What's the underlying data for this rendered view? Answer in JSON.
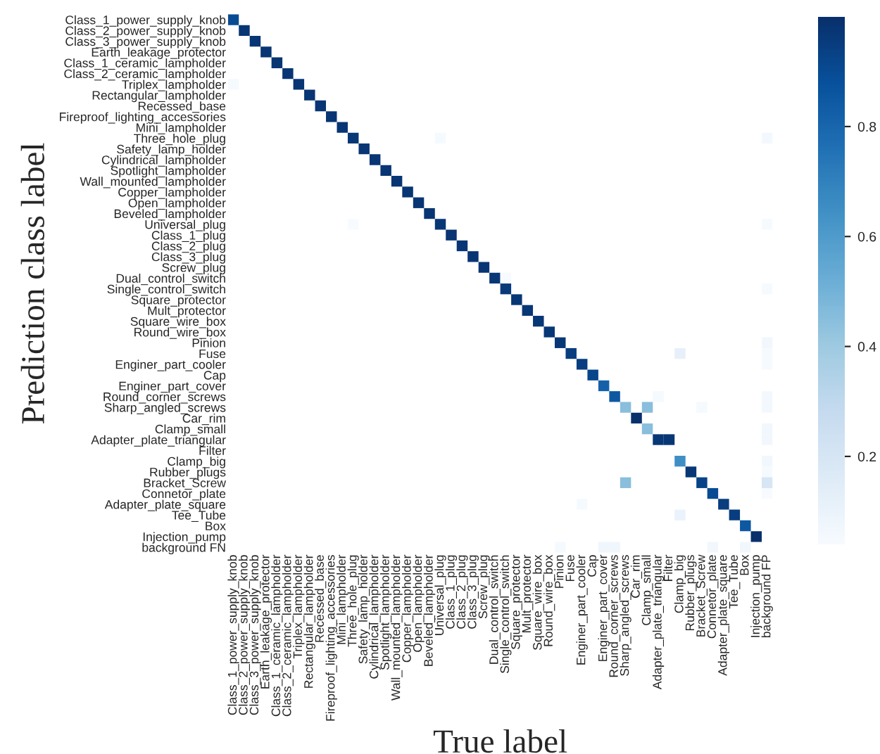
{
  "chart_data": {
    "type": "heatmap",
    "xlabel": "True label",
    "ylabel": "Prediction class label",
    "categories": [
      "Class_1_power_supply_knob",
      "Class_2_power_supply_knob",
      "Class_3_power_supply_knob",
      "Earth_leakage_protector",
      "Class_1_ceramic_lampholder",
      "Class_2_ceramic_lampholder",
      "Triplex_lampholder",
      "Rectangular_lampholder",
      "Recessed_base",
      "Fireproof_lighting_accessories",
      "Mini_lampholder",
      "Three_hole_plug",
      "Safety_lamp_holder",
      "Cylindrical_lampholder",
      "Spotlight_lampholder",
      "Wall_mounted_lampholder",
      "Copper_lampholder",
      "Open_lampholder",
      "Beveled_lampholder",
      "Universal_plug",
      "Class_1_plug",
      "Class_2_plug",
      "Class_3_plug",
      "Screw_plug",
      "Dual_control_switch",
      "Single_control_switch",
      "Square_protector",
      "Mult_protector",
      "Square_wire_box",
      "Round_wire_box",
      "Pinion",
      "Fuse",
      "Enginer_part_cooler",
      "Cap",
      "Enginer_part_cover",
      "Round_corner_screws",
      "Sharp_angled_screws",
      "Car_rim",
      "Clamp_small",
      "Adapter_plate_triangular",
      "Filter",
      "Clamp_big",
      "Rubber_plugs",
      "Bracket_Screw",
      "Connetor_plate",
      "Adapter_plate_square",
      "Tee_Tube",
      "Box",
      "Injection_pump",
      "background FP"
    ],
    "y_categories": [
      "Class_1_power_supply_knob",
      "Class_2_power_supply_knob",
      "Class_3_power_supply_knob",
      "Earth_leakage_protector",
      "Class_1_ceramic_lampholder",
      "Class_2_ceramic_lampholder",
      "Triplex_lampholder",
      "Rectangular_lampholder",
      "Recessed_base",
      "Fireproof_lighting_accessories",
      "Mini_lampholder",
      "Three_hole_plug",
      "Safety_lamp_holder",
      "Cylindrical_lampholder",
      "Spotlight_lampholder",
      "Wall_mounted_lampholder",
      "Copper_lampholder",
      "Open_lampholder",
      "Beveled_lampholder",
      "Universal_plug",
      "Class_1_plug",
      "Class_2_plug",
      "Class_3_plug",
      "Screw_plug",
      "Dual_control_switch",
      "Single_control_switch",
      "Square_protector",
      "Mult_protector",
      "Square_wire_box",
      "Round_wire_box",
      "Pinion",
      "Fuse",
      "Enginer_part_cooler",
      "Cap",
      "Enginer_part_cover",
      "Round_corner_screws",
      "Sharp_angled_screws",
      "Car_rim",
      "Clamp_small",
      "Adapter_plate_triangular",
      "Filter",
      "Clamp_big",
      "Rubber_plugs",
      "Bracket_Screw",
      "Connetor_plate",
      "Adapter_plate_square",
      "Tee_Tube",
      "Box",
      "Injection_pump",
      "background FN"
    ],
    "cells": [
      [
        0.9,
        null,
        null,
        null,
        null,
        null,
        null,
        null,
        null,
        null,
        null,
        null,
        null,
        null,
        null,
        null,
        null,
        null,
        null,
        null,
        null,
        null,
        null,
        null,
        null,
        null,
        null,
        null,
        null,
        null,
        null,
        null,
        null,
        null,
        null,
        null,
        null,
        null,
        null,
        null,
        null,
        null,
        null,
        null,
        null,
        null,
        null,
        null,
        null,
        null
      ],
      [
        null,
        0.98,
        null,
        null,
        null,
        null,
        null,
        null,
        null,
        null,
        null,
        null,
        null,
        null,
        null,
        null,
        null,
        null,
        null,
        null,
        null,
        null,
        null,
        null,
        null,
        null,
        null,
        null,
        null,
        null,
        null,
        null,
        null,
        null,
        null,
        null,
        null,
        null,
        null,
        null,
        null,
        null,
        null,
        null,
        null,
        null,
        null,
        null,
        null,
        null
      ],
      [
        null,
        null,
        0.98,
        null,
        null,
        null,
        null,
        null,
        null,
        null,
        null,
        null,
        null,
        null,
        null,
        null,
        null,
        null,
        null,
        null,
        null,
        null,
        null,
        null,
        null,
        null,
        null,
        null,
        null,
        null,
        null,
        null,
        null,
        null,
        null,
        null,
        null,
        null,
        null,
        null,
        null,
        null,
        null,
        null,
        null,
        null,
        null,
        null,
        null,
        null
      ],
      [
        null,
        null,
        null,
        0.98,
        null,
        null,
        null,
        null,
        null,
        null,
        null,
        null,
        null,
        null,
        null,
        null,
        null,
        null,
        null,
        null,
        null,
        null,
        null,
        null,
        null,
        null,
        null,
        null,
        null,
        null,
        null,
        null,
        null,
        null,
        null,
        null,
        null,
        null,
        null,
        null,
        null,
        null,
        null,
        null,
        null,
        null,
        null,
        null,
        null,
        null
      ],
      [
        null,
        null,
        null,
        null,
        0.98,
        null,
        null,
        null,
        null,
        null,
        null,
        null,
        null,
        null,
        null,
        null,
        null,
        null,
        null,
        null,
        null,
        null,
        null,
        null,
        null,
        null,
        null,
        null,
        null,
        null,
        null,
        null,
        null,
        null,
        null,
        null,
        null,
        null,
        null,
        null,
        null,
        null,
        null,
        null,
        null,
        null,
        null,
        null,
        null,
        null
      ],
      [
        null,
        null,
        null,
        null,
        null,
        0.98,
        null,
        null,
        null,
        null,
        null,
        null,
        null,
        null,
        null,
        null,
        null,
        null,
        null,
        null,
        null,
        null,
        null,
        null,
        null,
        null,
        null,
        null,
        null,
        null,
        null,
        null,
        null,
        null,
        null,
        null,
        null,
        null,
        null,
        null,
        null,
        null,
        null,
        null,
        null,
        null,
        null,
        null,
        null,
        null
      ],
      [
        0.05,
        null,
        null,
        null,
        null,
        null,
        0.98,
        null,
        null,
        null,
        null,
        null,
        null,
        null,
        null,
        null,
        null,
        null,
        null,
        null,
        null,
        null,
        null,
        null,
        null,
        null,
        null,
        null,
        null,
        null,
        null,
        null,
        null,
        null,
        null,
        null,
        null,
        null,
        null,
        null,
        null,
        null,
        null,
        null,
        null,
        null,
        null,
        null,
        null,
        null
      ],
      [
        null,
        null,
        null,
        null,
        null,
        null,
        null,
        0.98,
        null,
        null,
        null,
        null,
        null,
        null,
        null,
        null,
        null,
        null,
        null,
        null,
        null,
        null,
        null,
        null,
        null,
        null,
        null,
        null,
        null,
        null,
        null,
        null,
        null,
        null,
        null,
        null,
        null,
        null,
        null,
        null,
        null,
        null,
        null,
        null,
        null,
        null,
        null,
        null,
        null,
        null
      ],
      [
        null,
        null,
        null,
        null,
        null,
        null,
        null,
        null,
        0.98,
        null,
        null,
        null,
        null,
        null,
        null,
        null,
        null,
        null,
        null,
        null,
        null,
        null,
        null,
        null,
        null,
        null,
        null,
        null,
        null,
        null,
        null,
        null,
        null,
        null,
        null,
        null,
        null,
        null,
        null,
        null,
        null,
        null,
        null,
        null,
        null,
        null,
        null,
        null,
        null,
        null
      ],
      [
        null,
        null,
        null,
        null,
        null,
        null,
        null,
        null,
        null,
        0.98,
        null,
        null,
        null,
        null,
        null,
        null,
        null,
        null,
        null,
        null,
        null,
        null,
        null,
        null,
        null,
        null,
        null,
        null,
        null,
        null,
        null,
        null,
        null,
        null,
        null,
        null,
        null,
        null,
        null,
        null,
        null,
        null,
        null,
        null,
        null,
        null,
        null,
        null,
        null,
        null
      ],
      [
        null,
        null,
        null,
        null,
        null,
        null,
        null,
        null,
        null,
        null,
        0.98,
        null,
        null,
        null,
        null,
        null,
        null,
        null,
        null,
        null,
        null,
        null,
        null,
        null,
        null,
        null,
        null,
        null,
        null,
        null,
        null,
        null,
        null,
        null,
        null,
        null,
        null,
        null,
        null,
        null,
        null,
        null,
        null,
        null,
        null,
        null,
        null,
        null,
        null,
        null
      ],
      [
        null,
        null,
        null,
        null,
        null,
        null,
        null,
        null,
        null,
        null,
        null,
        0.97,
        null,
        null,
        null,
        null,
        null,
        null,
        null,
        0.05,
        null,
        null,
        null,
        null,
        null,
        null,
        null,
        null,
        null,
        null,
        null,
        null,
        null,
        null,
        null,
        null,
        null,
        null,
        null,
        null,
        null,
        null,
        null,
        null,
        null,
        null,
        null,
        null,
        null,
        0.06
      ],
      [
        null,
        null,
        null,
        null,
        null,
        null,
        null,
        null,
        null,
        null,
        null,
        null,
        0.98,
        null,
        null,
        null,
        null,
        null,
        null,
        null,
        null,
        null,
        null,
        null,
        null,
        null,
        null,
        null,
        null,
        null,
        null,
        null,
        null,
        null,
        null,
        null,
        null,
        null,
        null,
        null,
        null,
        null,
        null,
        null,
        null,
        null,
        null,
        null,
        null,
        null
      ],
      [
        null,
        null,
        null,
        null,
        null,
        null,
        null,
        null,
        null,
        null,
        null,
        null,
        null,
        0.98,
        null,
        null,
        null,
        null,
        null,
        null,
        null,
        null,
        null,
        null,
        null,
        null,
        null,
        null,
        null,
        null,
        null,
        null,
        null,
        null,
        null,
        null,
        null,
        null,
        null,
        null,
        null,
        null,
        null,
        null,
        null,
        null,
        null,
        null,
        null,
        null
      ],
      [
        null,
        null,
        null,
        null,
        null,
        null,
        null,
        null,
        null,
        null,
        null,
        null,
        null,
        null,
        0.98,
        null,
        null,
        null,
        null,
        null,
        null,
        null,
        null,
        null,
        null,
        null,
        null,
        null,
        null,
        null,
        null,
        null,
        null,
        null,
        null,
        null,
        null,
        null,
        null,
        null,
        null,
        null,
        null,
        null,
        null,
        null,
        null,
        null,
        null,
        null
      ],
      [
        null,
        null,
        null,
        null,
        null,
        null,
        null,
        null,
        null,
        null,
        null,
        null,
        null,
        null,
        null,
        0.98,
        null,
        null,
        null,
        null,
        null,
        null,
        null,
        null,
        null,
        null,
        null,
        null,
        null,
        null,
        null,
        null,
        null,
        null,
        null,
        null,
        null,
        null,
        null,
        null,
        null,
        null,
        null,
        null,
        null,
        null,
        null,
        null,
        null,
        null
      ],
      [
        null,
        null,
        null,
        null,
        null,
        null,
        null,
        null,
        null,
        null,
        null,
        null,
        null,
        null,
        null,
        null,
        0.98,
        null,
        null,
        null,
        null,
        null,
        null,
        null,
        null,
        null,
        null,
        null,
        null,
        null,
        null,
        null,
        null,
        null,
        null,
        null,
        null,
        null,
        null,
        null,
        null,
        null,
        null,
        null,
        null,
        null,
        null,
        null,
        null,
        null
      ],
      [
        null,
        null,
        null,
        null,
        null,
        null,
        null,
        null,
        null,
        null,
        null,
        null,
        null,
        null,
        null,
        null,
        null,
        0.98,
        null,
        null,
        null,
        null,
        null,
        null,
        null,
        null,
        null,
        null,
        null,
        null,
        null,
        null,
        null,
        null,
        null,
        null,
        null,
        null,
        null,
        null,
        null,
        null,
        null,
        null,
        null,
        null,
        null,
        null,
        null,
        null
      ],
      [
        null,
        null,
        null,
        null,
        null,
        null,
        null,
        null,
        null,
        null,
        null,
        null,
        null,
        null,
        null,
        null,
        null,
        null,
        0.98,
        null,
        null,
        null,
        null,
        null,
        null,
        null,
        null,
        null,
        null,
        null,
        null,
        null,
        null,
        null,
        null,
        null,
        null,
        null,
        null,
        null,
        null,
        null,
        null,
        null,
        null,
        null,
        null,
        null,
        null,
        null
      ],
      [
        null,
        null,
        null,
        null,
        null,
        null,
        null,
        null,
        null,
        null,
        null,
        0.04,
        null,
        null,
        null,
        null,
        null,
        null,
        null,
        0.97,
        null,
        null,
        null,
        null,
        null,
        null,
        null,
        null,
        null,
        null,
        null,
        null,
        null,
        null,
        null,
        null,
        null,
        null,
        null,
        null,
        null,
        null,
        null,
        null,
        null,
        null,
        null,
        null,
        null,
        0.05
      ],
      [
        null,
        null,
        null,
        null,
        null,
        null,
        null,
        null,
        null,
        null,
        null,
        null,
        null,
        null,
        null,
        null,
        null,
        null,
        null,
        null,
        0.98,
        null,
        null,
        null,
        null,
        null,
        null,
        null,
        null,
        null,
        null,
        null,
        null,
        null,
        null,
        null,
        null,
        null,
        null,
        null,
        null,
        null,
        null,
        null,
        null,
        null,
        null,
        null,
        null,
        null
      ],
      [
        null,
        null,
        null,
        null,
        null,
        null,
        null,
        null,
        null,
        null,
        null,
        null,
        null,
        null,
        null,
        null,
        null,
        null,
        null,
        null,
        null,
        0.98,
        null,
        null,
        null,
        null,
        null,
        null,
        null,
        null,
        null,
        null,
        null,
        null,
        null,
        null,
        null,
        null,
        null,
        null,
        null,
        null,
        null,
        null,
        null,
        null,
        null,
        null,
        null,
        null
      ],
      [
        null,
        null,
        null,
        null,
        null,
        null,
        null,
        null,
        null,
        null,
        null,
        null,
        null,
        null,
        null,
        null,
        null,
        null,
        null,
        null,
        null,
        null,
        0.98,
        null,
        null,
        null,
        null,
        null,
        null,
        null,
        null,
        null,
        null,
        null,
        null,
        null,
        null,
        null,
        null,
        null,
        null,
        null,
        null,
        null,
        null,
        null,
        null,
        null,
        null,
        null
      ],
      [
        null,
        null,
        null,
        null,
        null,
        null,
        null,
        null,
        null,
        null,
        null,
        null,
        null,
        null,
        null,
        null,
        null,
        null,
        null,
        null,
        null,
        null,
        null,
        0.98,
        null,
        null,
        null,
        null,
        null,
        null,
        null,
        null,
        null,
        null,
        null,
        null,
        null,
        null,
        null,
        null,
        null,
        null,
        null,
        null,
        null,
        null,
        null,
        null,
        null,
        null
      ],
      [
        null,
        null,
        null,
        null,
        null,
        null,
        null,
        null,
        null,
        null,
        null,
        null,
        null,
        null,
        null,
        null,
        null,
        null,
        null,
        null,
        null,
        null,
        null,
        null,
        0.97,
        0.04,
        null,
        null,
        null,
        null,
        null,
        null,
        null,
        null,
        null,
        null,
        null,
        null,
        null,
        null,
        null,
        null,
        null,
        null,
        null,
        null,
        null,
        null,
        null,
        null
      ],
      [
        null,
        null,
        null,
        null,
        null,
        null,
        null,
        null,
        null,
        null,
        null,
        null,
        null,
        null,
        null,
        null,
        null,
        null,
        null,
        null,
        null,
        null,
        null,
        null,
        null,
        0.96,
        null,
        null,
        null,
        null,
        null,
        null,
        null,
        null,
        null,
        null,
        null,
        null,
        null,
        null,
        null,
        null,
        null,
        null,
        null,
        null,
        null,
        null,
        null,
        0.05
      ],
      [
        null,
        null,
        null,
        null,
        null,
        null,
        null,
        null,
        null,
        null,
        null,
        null,
        null,
        null,
        null,
        null,
        null,
        null,
        null,
        null,
        null,
        null,
        null,
        null,
        null,
        null,
        0.97,
        null,
        null,
        null,
        null,
        null,
        null,
        null,
        null,
        null,
        null,
        null,
        null,
        null,
        null,
        null,
        null,
        null,
        null,
        null,
        null,
        null,
        null,
        null
      ],
      [
        null,
        null,
        null,
        null,
        null,
        null,
        null,
        null,
        null,
        null,
        null,
        null,
        null,
        null,
        null,
        null,
        null,
        null,
        null,
        null,
        null,
        null,
        null,
        null,
        null,
        null,
        null,
        0.97,
        null,
        null,
        null,
        null,
        null,
        null,
        null,
        null,
        null,
        null,
        null,
        null,
        null,
        null,
        null,
        null,
        null,
        null,
        null,
        null,
        null,
        null
      ],
      [
        null,
        null,
        null,
        null,
        null,
        null,
        null,
        null,
        null,
        null,
        null,
        null,
        null,
        null,
        null,
        null,
        null,
        null,
        null,
        null,
        null,
        null,
        null,
        null,
        null,
        null,
        null,
        null,
        0.97,
        null,
        null,
        null,
        null,
        null,
        null,
        null,
        null,
        null,
        null,
        null,
        null,
        null,
        null,
        null,
        null,
        null,
        null,
        null,
        null,
        null
      ],
      [
        null,
        null,
        null,
        null,
        null,
        null,
        null,
        null,
        null,
        null,
        null,
        null,
        null,
        null,
        null,
        null,
        null,
        null,
        null,
        null,
        null,
        null,
        null,
        null,
        null,
        null,
        null,
        null,
        null,
        0.97,
        null,
        null,
        null,
        null,
        null,
        null,
        null,
        null,
        null,
        null,
        null,
        null,
        null,
        null,
        null,
        null,
        null,
        null,
        null,
        null
      ],
      [
        null,
        null,
        null,
        null,
        null,
        null,
        null,
        null,
        null,
        null,
        null,
        null,
        null,
        null,
        null,
        null,
        null,
        null,
        null,
        null,
        null,
        null,
        null,
        null,
        null,
        null,
        null,
        null,
        null,
        null,
        0.97,
        null,
        null,
        null,
        null,
        null,
        null,
        null,
        null,
        null,
        null,
        null,
        null,
        null,
        null,
        null,
        null,
        null,
        null,
        0.07
      ],
      [
        null,
        null,
        null,
        null,
        null,
        null,
        null,
        null,
        null,
        null,
        null,
        null,
        null,
        null,
        null,
        null,
        null,
        null,
        null,
        null,
        null,
        null,
        null,
        null,
        null,
        null,
        null,
        null,
        null,
        null,
        null,
        0.95,
        null,
        null,
        null,
        null,
        null,
        null,
        null,
        null,
        null,
        0.12,
        null,
        null,
        null,
        null,
        null,
        null,
        null,
        0.05
      ],
      [
        null,
        null,
        null,
        null,
        null,
        null,
        null,
        null,
        null,
        null,
        null,
        null,
        null,
        null,
        null,
        null,
        null,
        null,
        null,
        null,
        null,
        null,
        null,
        null,
        null,
        null,
        null,
        null,
        null,
        null,
        null,
        null,
        0.95,
        null,
        null,
        null,
        null,
        null,
        null,
        null,
        null,
        null,
        null,
        null,
        null,
        null,
        null,
        null,
        null,
        0.05
      ],
      [
        null,
        null,
        null,
        null,
        null,
        null,
        null,
        null,
        null,
        null,
        null,
        null,
        null,
        null,
        null,
        null,
        null,
        null,
        null,
        null,
        null,
        null,
        null,
        null,
        null,
        null,
        null,
        null,
        null,
        null,
        null,
        null,
        null,
        0.92,
        null,
        null,
        null,
        null,
        null,
        null,
        null,
        null,
        null,
        null,
        null,
        null,
        null,
        null,
        null,
        null
      ],
      [
        null,
        null,
        null,
        null,
        null,
        null,
        null,
        null,
        null,
        null,
        null,
        null,
        null,
        null,
        null,
        null,
        null,
        null,
        null,
        null,
        null,
        null,
        null,
        null,
        null,
        null,
        null,
        null,
        null,
        null,
        null,
        null,
        null,
        null,
        0.82,
        null,
        null,
        null,
        null,
        null,
        null,
        null,
        null,
        null,
        null,
        null,
        null,
        null,
        null,
        null
      ],
      [
        null,
        null,
        null,
        null,
        null,
        null,
        null,
        null,
        null,
        null,
        null,
        null,
        null,
        null,
        null,
        null,
        null,
        null,
        null,
        null,
        null,
        null,
        null,
        null,
        null,
        null,
        null,
        null,
        null,
        null,
        null,
        null,
        null,
        null,
        null,
        0.85,
        null,
        null,
        null,
        0.05,
        null,
        null,
        null,
        null,
        null,
        null,
        null,
        null,
        null,
        0.06
      ],
      [
        null,
        null,
        null,
        null,
        null,
        null,
        null,
        null,
        null,
        null,
        null,
        null,
        null,
        null,
        null,
        null,
        null,
        null,
        null,
        null,
        null,
        null,
        null,
        null,
        null,
        null,
        null,
        null,
        null,
        null,
        null,
        null,
        null,
        null,
        null,
        null,
        0.45,
        null,
        0.45,
        null,
        null,
        null,
        null,
        0.05,
        null,
        null,
        null,
        null,
        null,
        0.06
      ],
      [
        null,
        null,
        null,
        null,
        null,
        null,
        null,
        null,
        null,
        null,
        null,
        null,
        null,
        null,
        null,
        null,
        null,
        null,
        null,
        null,
        null,
        null,
        null,
        null,
        null,
        null,
        null,
        null,
        null,
        null,
        null,
        null,
        null,
        null,
        null,
        null,
        null,
        1.0,
        null,
        null,
        null,
        null,
        null,
        null,
        null,
        null,
        null,
        null,
        null,
        null
      ],
      [
        null,
        null,
        null,
        null,
        null,
        null,
        null,
        null,
        null,
        null,
        null,
        null,
        null,
        null,
        null,
        null,
        null,
        null,
        null,
        null,
        null,
        null,
        null,
        null,
        null,
        null,
        null,
        null,
        null,
        null,
        null,
        null,
        null,
        null,
        null,
        null,
        null,
        null,
        0.45,
        null,
        null,
        null,
        null,
        null,
        null,
        null,
        null,
        null,
        null,
        0.07
      ],
      [
        null,
        null,
        null,
        null,
        null,
        null,
        null,
        null,
        null,
        null,
        null,
        null,
        null,
        null,
        null,
        null,
        null,
        null,
        null,
        null,
        null,
        null,
        null,
        null,
        null,
        null,
        null,
        null,
        null,
        null,
        null,
        null,
        null,
        null,
        null,
        null,
        null,
        null,
        null,
        0.97,
        0.97,
        null,
        null,
        null,
        null,
        null,
        null,
        null,
        null,
        0.07
      ],
      [
        null,
        null,
        null,
        null,
        null,
        null,
        null,
        null,
        null,
        null,
        null,
        null,
        null,
        null,
        null,
        null,
        null,
        null,
        null,
        null,
        null,
        null,
        null,
        null,
        null,
        null,
        null,
        null,
        null,
        null,
        null,
        null,
        null,
        null,
        null,
        null,
        null,
        null,
        null,
        null,
        null,
        null,
        null,
        null,
        null,
        null,
        null,
        null,
        null,
        null
      ],
      [
        null,
        null,
        null,
        null,
        null,
        null,
        null,
        null,
        null,
        null,
        null,
        null,
        null,
        null,
        null,
        null,
        null,
        null,
        null,
        null,
        null,
        null,
        null,
        null,
        null,
        null,
        null,
        null,
        null,
        null,
        null,
        null,
        null,
        null,
        null,
        null,
        null,
        null,
        null,
        null,
        null,
        0.65,
        null,
        null,
        null,
        null,
        null,
        null,
        null,
        0.07
      ],
      [
        null,
        null,
        null,
        null,
        null,
        null,
        null,
        null,
        null,
        null,
        null,
        null,
        null,
        null,
        null,
        null,
        null,
        null,
        null,
        null,
        null,
        null,
        null,
        null,
        null,
        null,
        null,
        null,
        null,
        null,
        null,
        null,
        null,
        null,
        null,
        null,
        null,
        null,
        null,
        null,
        null,
        null,
        0.97,
        null,
        null,
        null,
        null,
        null,
        null,
        0.05
      ],
      [
        null,
        null,
        null,
        null,
        null,
        null,
        null,
        null,
        null,
        null,
        null,
        null,
        null,
        null,
        null,
        null,
        null,
        null,
        null,
        null,
        null,
        null,
        null,
        null,
        null,
        null,
        null,
        null,
        null,
        null,
        null,
        null,
        null,
        null,
        null,
        null,
        0.45,
        null,
        null,
        null,
        null,
        null,
        null,
        0.93,
        null,
        null,
        null,
        null,
        null,
        0.2
      ],
      [
        null,
        null,
        null,
        null,
        null,
        null,
        null,
        null,
        null,
        null,
        null,
        null,
        null,
        null,
        null,
        null,
        null,
        null,
        null,
        null,
        null,
        null,
        null,
        null,
        null,
        null,
        null,
        null,
        null,
        null,
        null,
        null,
        null,
        null,
        null,
        null,
        null,
        null,
        null,
        null,
        null,
        null,
        null,
        null,
        0.9,
        null,
        null,
        null,
        null,
        0.04
      ],
      [
        null,
        null,
        null,
        null,
        null,
        null,
        null,
        null,
        null,
        null,
        null,
        null,
        null,
        null,
        null,
        null,
        null,
        null,
        null,
        null,
        null,
        null,
        null,
        null,
        null,
        null,
        null,
        null,
        null,
        null,
        null,
        null,
        0.05,
        null,
        null,
        null,
        null,
        null,
        null,
        null,
        null,
        null,
        null,
        null,
        null,
        0.95,
        null,
        null,
        null,
        null
      ],
      [
        null,
        null,
        null,
        null,
        null,
        null,
        null,
        null,
        null,
        null,
        null,
        null,
        null,
        null,
        null,
        null,
        null,
        null,
        null,
        null,
        null,
        null,
        null,
        null,
        null,
        null,
        null,
        null,
        null,
        null,
        null,
        null,
        null,
        null,
        null,
        null,
        null,
        null,
        null,
        null,
        null,
        0.1,
        null,
        null,
        null,
        null,
        0.95,
        null,
        null,
        null
      ],
      [
        null,
        null,
        null,
        null,
        null,
        null,
        null,
        null,
        null,
        null,
        null,
        null,
        null,
        null,
        null,
        null,
        null,
        null,
        null,
        null,
        null,
        null,
        null,
        null,
        null,
        null,
        null,
        null,
        null,
        null,
        null,
        null,
        null,
        null,
        null,
        null,
        null,
        null,
        null,
        null,
        null,
        null,
        null,
        null,
        null,
        null,
        null,
        0.85,
        null,
        null
      ],
      [
        null,
        null,
        null,
        null,
        null,
        null,
        null,
        null,
        null,
        null,
        null,
        null,
        null,
        null,
        null,
        null,
        null,
        null,
        null,
        null,
        null,
        null,
        null,
        null,
        null,
        null,
        null,
        null,
        null,
        null,
        null,
        null,
        null,
        null,
        null,
        null,
        null,
        null,
        null,
        null,
        null,
        null,
        null,
        null,
        null,
        null,
        null,
        null,
        1.0,
        null
      ],
      [
        null,
        null,
        null,
        null,
        null,
        null,
        null,
        null,
        null,
        null,
        null,
        null,
        null,
        null,
        null,
        null,
        null,
        null,
        null,
        null,
        null,
        null,
        null,
        null,
        null,
        null,
        null,
        null,
        null,
        null,
        0.05,
        null,
        null,
        null,
        0.08,
        0.08,
        null,
        null,
        null,
        null,
        null,
        null,
        null,
        null,
        0.07,
        null,
        null,
        0.07,
        null,
        null
      ]
    ],
    "clim": [
      0.04,
      1.0
    ],
    "cticks": [
      0.2,
      0.4,
      0.6,
      0.8
    ]
  }
}
